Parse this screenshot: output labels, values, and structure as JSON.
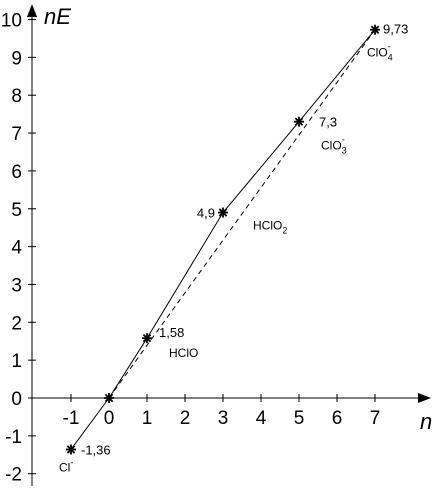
{
  "chart_data": {
    "type": "line",
    "xlabel": "n",
    "ylabel": "nE",
    "x_ticks": [
      "-1",
      "0",
      "1",
      "2",
      "3",
      "4",
      "5",
      "6",
      "7"
    ],
    "y_ticks": [
      "-2",
      "-1",
      "0",
      "1",
      "2",
      "3",
      "4",
      "5",
      "6",
      "7",
      "8",
      "9",
      "10"
    ],
    "xlim": [
      -2,
      8
    ],
    "ylim": [
      -2,
      10.4
    ],
    "series": [
      {
        "style": "solid",
        "points": [
          {
            "x": -1,
            "y": -1.36,
            "value_label": "-1,36",
            "species": "Cl",
            "charge": "-",
            "subscript": ""
          },
          {
            "x": 0,
            "y": 0,
            "value_label": "",
            "species": "",
            "charge": "",
            "subscript": ""
          },
          {
            "x": 1,
            "y": 1.58,
            "value_label": "1,58",
            "species": "HClO",
            "charge": "",
            "subscript": ""
          },
          {
            "x": 3,
            "y": 4.9,
            "value_label": "4,9",
            "species": "HClO",
            "charge": "",
            "subscript": "2"
          },
          {
            "x": 5,
            "y": 7.3,
            "value_label": "7,3",
            "species": "ClO",
            "charge": "-",
            "subscript": "3"
          },
          {
            "x": 7,
            "y": 9.73,
            "value_label": "9,73",
            "species": "ClO",
            "charge": "-",
            "subscript": "4"
          }
        ]
      },
      {
        "style": "dashed",
        "points": [
          {
            "x": 0,
            "y": 0
          },
          {
            "x": 7,
            "y": 9.73
          }
        ]
      }
    ],
    "grid": false,
    "legend": "none"
  }
}
